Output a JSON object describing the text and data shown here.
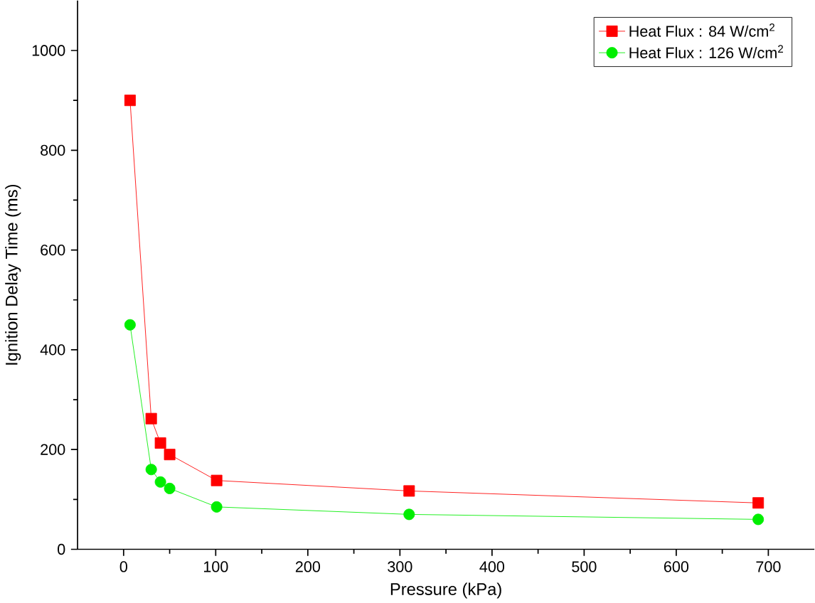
{
  "chart_data": {
    "type": "line",
    "xlabel": "Pressure (kPa)",
    "ylabel": "Ignition Delay Time (ms)",
    "x": [
      7,
      30,
      40,
      50,
      101,
      310,
      689
    ],
    "series": [
      {
        "name": "Heat Flux : 84 W/cm$^{2}$",
        "color": "#ff0000",
        "marker": "square",
        "values": [
          900,
          262,
          213,
          190,
          138,
          117,
          93
        ]
      },
      {
        "name": "Heat Flux : 126 W/cm$^{2}$",
        "color": "#00ee00",
        "marker": "circle",
        "values": [
          450,
          160,
          135,
          122,
          85,
          70,
          60
        ]
      }
    ],
    "xlim": [
      -50,
      750
    ],
    "ylim": [
      0,
      1100
    ],
    "xticks": [
      0,
      100,
      200,
      300,
      400,
      500,
      600,
      700
    ],
    "yticks": [
      0,
      200,
      400,
      600,
      800,
      1000
    ],
    "grid": false,
    "legend": "top right",
    "line_style": "solid"
  }
}
